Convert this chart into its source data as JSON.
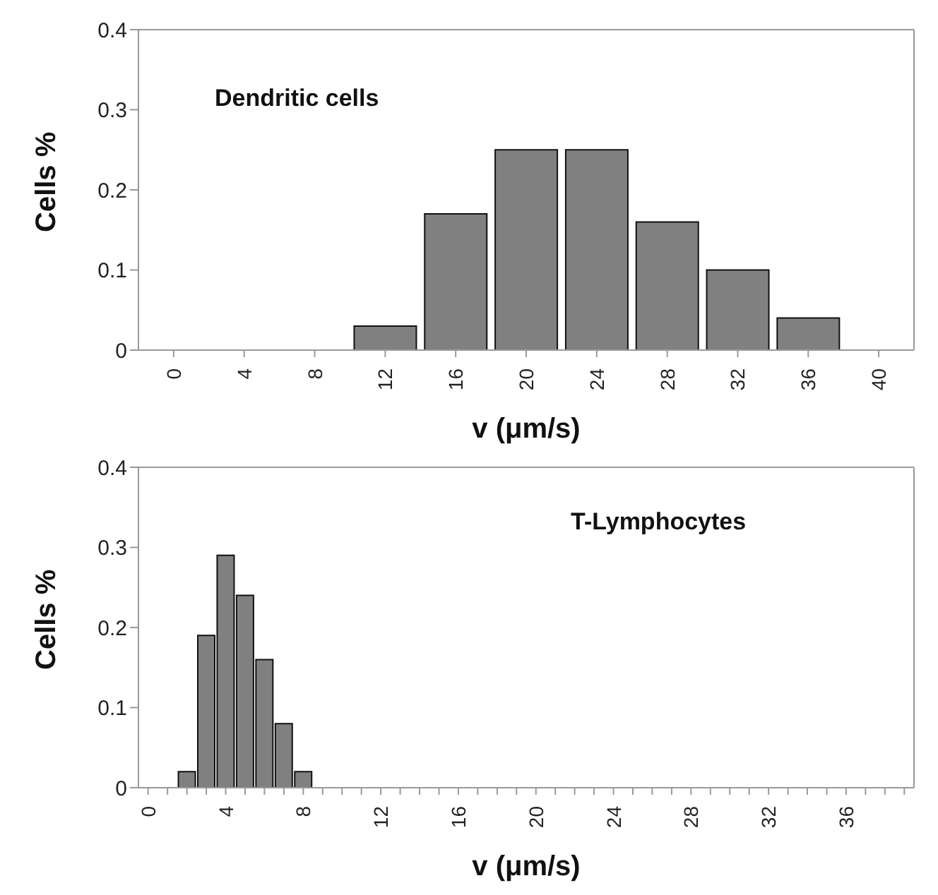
{
  "chart_data": [
    {
      "type": "bar",
      "title": "Dendritic cells",
      "categories": [
        "0",
        "4",
        "8",
        "12",
        "16",
        "20",
        "24",
        "28",
        "32",
        "36",
        "40"
      ],
      "values": [
        0,
        0,
        0,
        0.03,
        0.17,
        0.25,
        0.25,
        0.16,
        0.1,
        0.04,
        0
      ],
      "color": "#808080",
      "xlabel": "v (μm/s)",
      "ylabel": "Cells %",
      "ylim": [
        0,
        0.4
      ],
      "yticks": [
        0,
        0.1,
        0.2,
        0.3,
        0.4
      ],
      "grid": false,
      "legend": false
    },
    {
      "type": "bar",
      "title": "T-Lymphocytes",
      "categories": [
        "0",
        null,
        null,
        null,
        "4",
        null,
        null,
        null,
        "8",
        null,
        null,
        null,
        "12",
        null,
        null,
        null,
        "16",
        null,
        null,
        null,
        "20",
        null,
        null,
        null,
        "24",
        null,
        null,
        null,
        "28",
        null,
        null,
        null,
        "32",
        null,
        null,
        null,
        "36",
        null,
        null,
        null
      ],
      "values": [
        0,
        0,
        0.02,
        0.19,
        0.29,
        0.24,
        0.16,
        0.08,
        0.02,
        0,
        0,
        0,
        0,
        0,
        0,
        0,
        0,
        0,
        0,
        0,
        0,
        0,
        0,
        0,
        0,
        0,
        0,
        0,
        0,
        0,
        0,
        0,
        0,
        0,
        0,
        0,
        0,
        0,
        0,
        0
      ],
      "color": "#808080",
      "xlabel": "v (μm/s)",
      "ylabel": "Cells %",
      "ylim": [
        0,
        0.4
      ],
      "yticks": [
        0,
        0.1,
        0.2,
        0.3,
        0.4
      ],
      "grid": false,
      "legend": false
    }
  ]
}
